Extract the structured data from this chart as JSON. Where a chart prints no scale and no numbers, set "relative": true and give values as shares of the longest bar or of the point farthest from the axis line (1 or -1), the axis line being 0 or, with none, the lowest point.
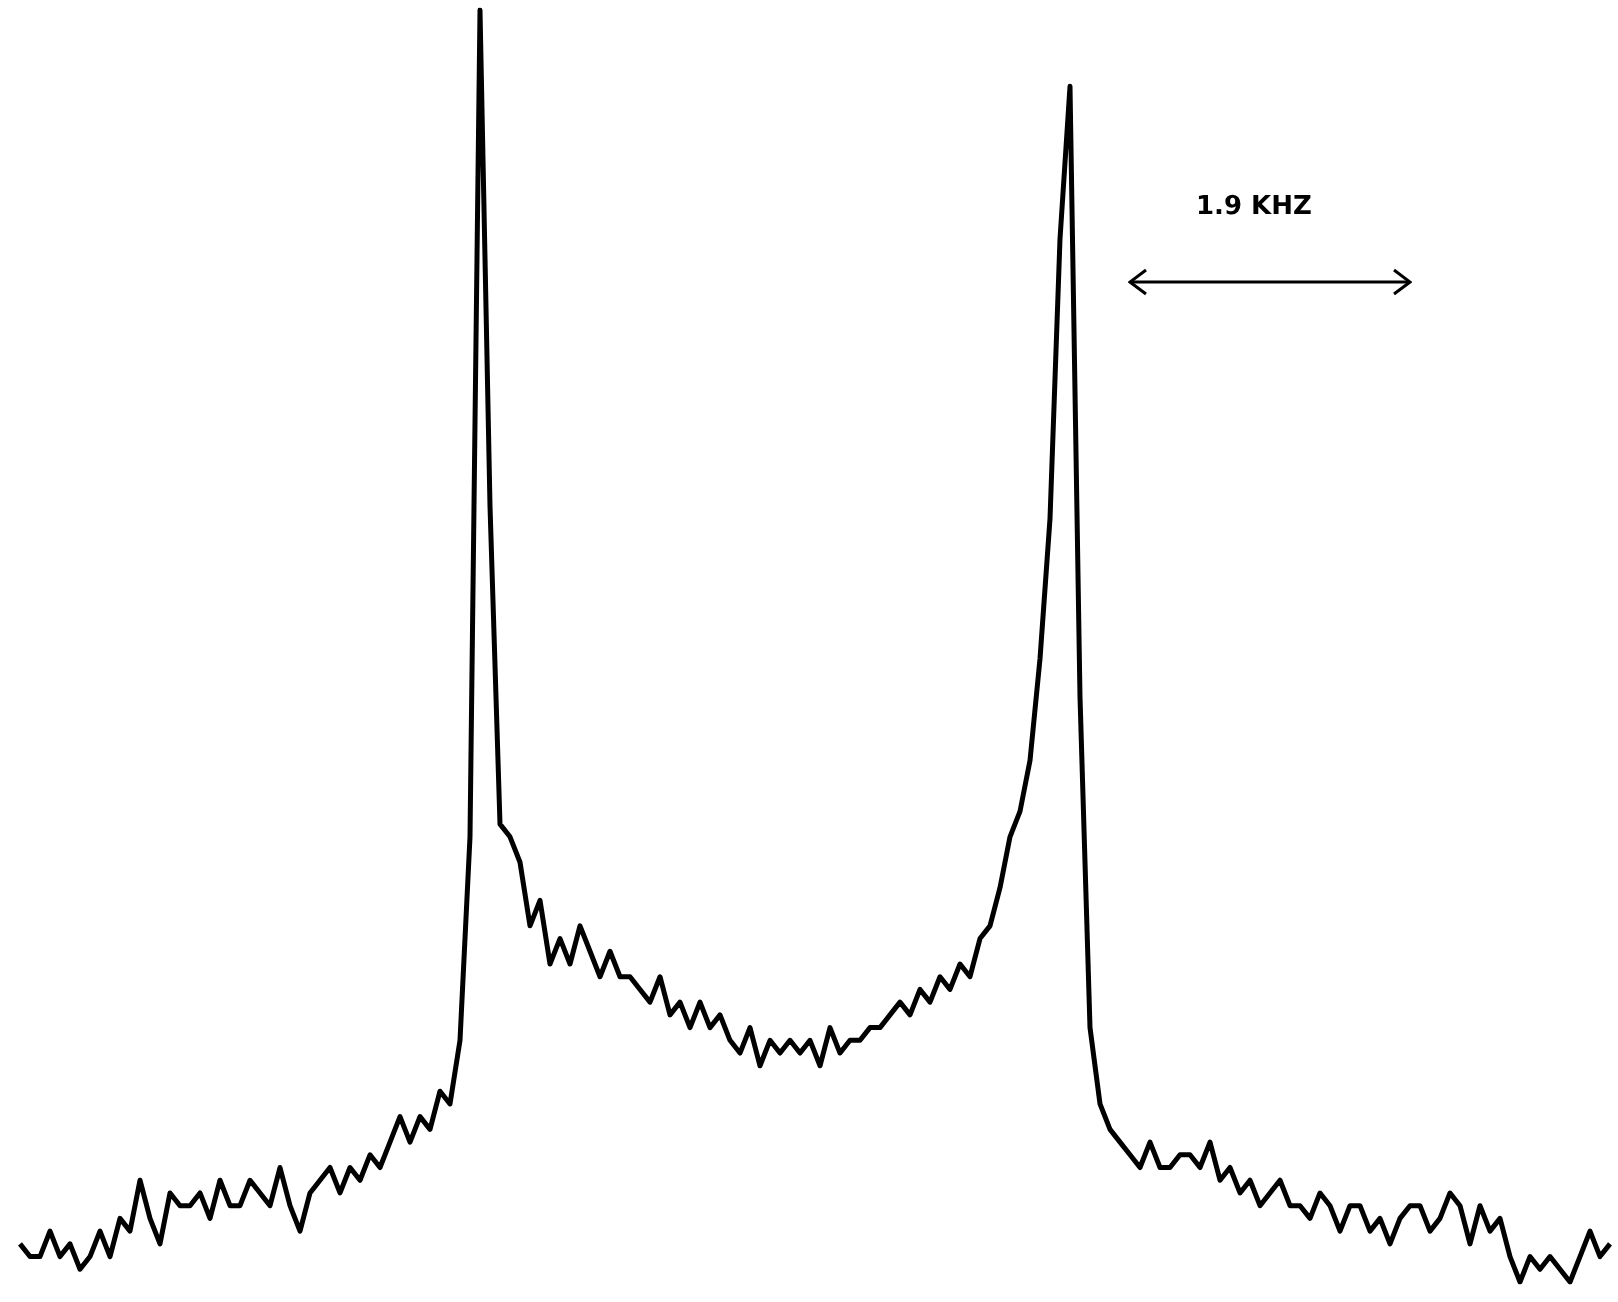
{
  "chart_data": {
    "type": "line",
    "relative": true,
    "color": "#000000",
    "line_style": "solid",
    "marker": "none",
    "annotations": [
      "1.9 KHZ"
    ],
    "categories": [
      null,
      null,
      null,
      null,
      null,
      null,
      null,
      null,
      null,
      null,
      null,
      null,
      null,
      null,
      null,
      null,
      null,
      null,
      null,
      null,
      null,
      null,
      null,
      null,
      null,
      null,
      null,
      null,
      null,
      null,
      null,
      null,
      null,
      null,
      null,
      null,
      null,
      null,
      null,
      null,
      null,
      null,
      null,
      null,
      null,
      null,
      null,
      null,
      null,
      null,
      null,
      null,
      null,
      null,
      null,
      null,
      null,
      null,
      null,
      null,
      null,
      null,
      null,
      null,
      null,
      null,
      null,
      null,
      null,
      null,
      null,
      null,
      null,
      null,
      null,
      null,
      null,
      null,
      null,
      null,
      null,
      null,
      null,
      null,
      null,
      null,
      null,
      null,
      null,
      null,
      null,
      null,
      null,
      null,
      null,
      null,
      null,
      null,
      null,
      null,
      null,
      null,
      null,
      null,
      null,
      null,
      null,
      null,
      null,
      null,
      null,
      null,
      null,
      null,
      null,
      null,
      null,
      null,
      null,
      null,
      null,
      null,
      null,
      null,
      null,
      null,
      null,
      null,
      null,
      null,
      null,
      null,
      null,
      null,
      null,
      null,
      null,
      null,
      null,
      null,
      null,
      null,
      null,
      null,
      null,
      null,
      null,
      null,
      null,
      null,
      null,
      null,
      null,
      null,
      null,
      null,
      null,
      null,
      null,
      null
    ],
    "values": [
      0.03,
      0.02,
      0.02,
      0.04,
      0.02,
      0.03,
      0.01,
      0.02,
      0.04,
      0.02,
      0.05,
      0.04,
      0.08,
      0.05,
      0.03,
      0.07,
      0.06,
      0.06,
      0.07,
      0.05,
      0.08,
      0.06,
      0.06,
      0.08,
      0.07,
      0.06,
      0.09,
      0.06,
      0.04,
      0.07,
      0.08,
      0.09,
      0.07,
      0.09,
      0.08,
      0.1,
      0.09,
      0.11,
      0.13,
      0.11,
      0.13,
      0.12,
      0.15,
      0.14,
      0.19,
      0.35,
      1,
      0.61,
      0.36,
      0.35,
      0.33,
      0.28,
      0.3,
      0.25,
      0.27,
      0.25,
      0.28,
      0.26,
      0.24,
      0.26,
      0.24,
      0.24,
      0.23,
      0.22,
      0.24,
      0.21,
      0.22,
      0.2,
      0.22,
      0.2,
      0.21,
      0.19,
      0.18,
      0.2,
      0.17,
      0.19,
      0.18,
      0.19,
      0.18,
      0.19,
      0.17,
      0.2,
      0.18,
      0.19,
      0.19,
      0.2,
      0.2,
      0.21,
      0.22,
      0.21,
      0.23,
      0.22,
      0.24,
      0.23,
      0.25,
      0.24,
      0.27,
      0.28,
      0.31,
      0.35,
      0.37,
      0.41,
      0.49,
      0.6,
      0.82,
      0.94,
      0.46,
      0.2,
      0.14,
      0.12,
      0.11,
      0.1,
      0.09,
      0.11,
      0.09,
      0.09,
      0.1,
      0.1,
      0.09,
      0.11,
      0.08,
      0.09,
      0.07,
      0.08,
      0.06,
      0.07,
      0.08,
      0.06,
      0.06,
      0.05,
      0.07,
      0.06,
      0.04,
      0.06,
      0.06,
      0.04,
      0.05,
      0.03,
      0.05,
      0.06,
      0.06,
      0.04,
      0.05,
      0.07,
      0.06,
      0.03,
      0.06,
      0.04,
      0.05,
      0.02,
      0,
      0.02,
      0.01,
      0.02,
      0.01,
      0,
      0.02,
      0.04,
      0.02,
      0.03
    ]
  }
}
